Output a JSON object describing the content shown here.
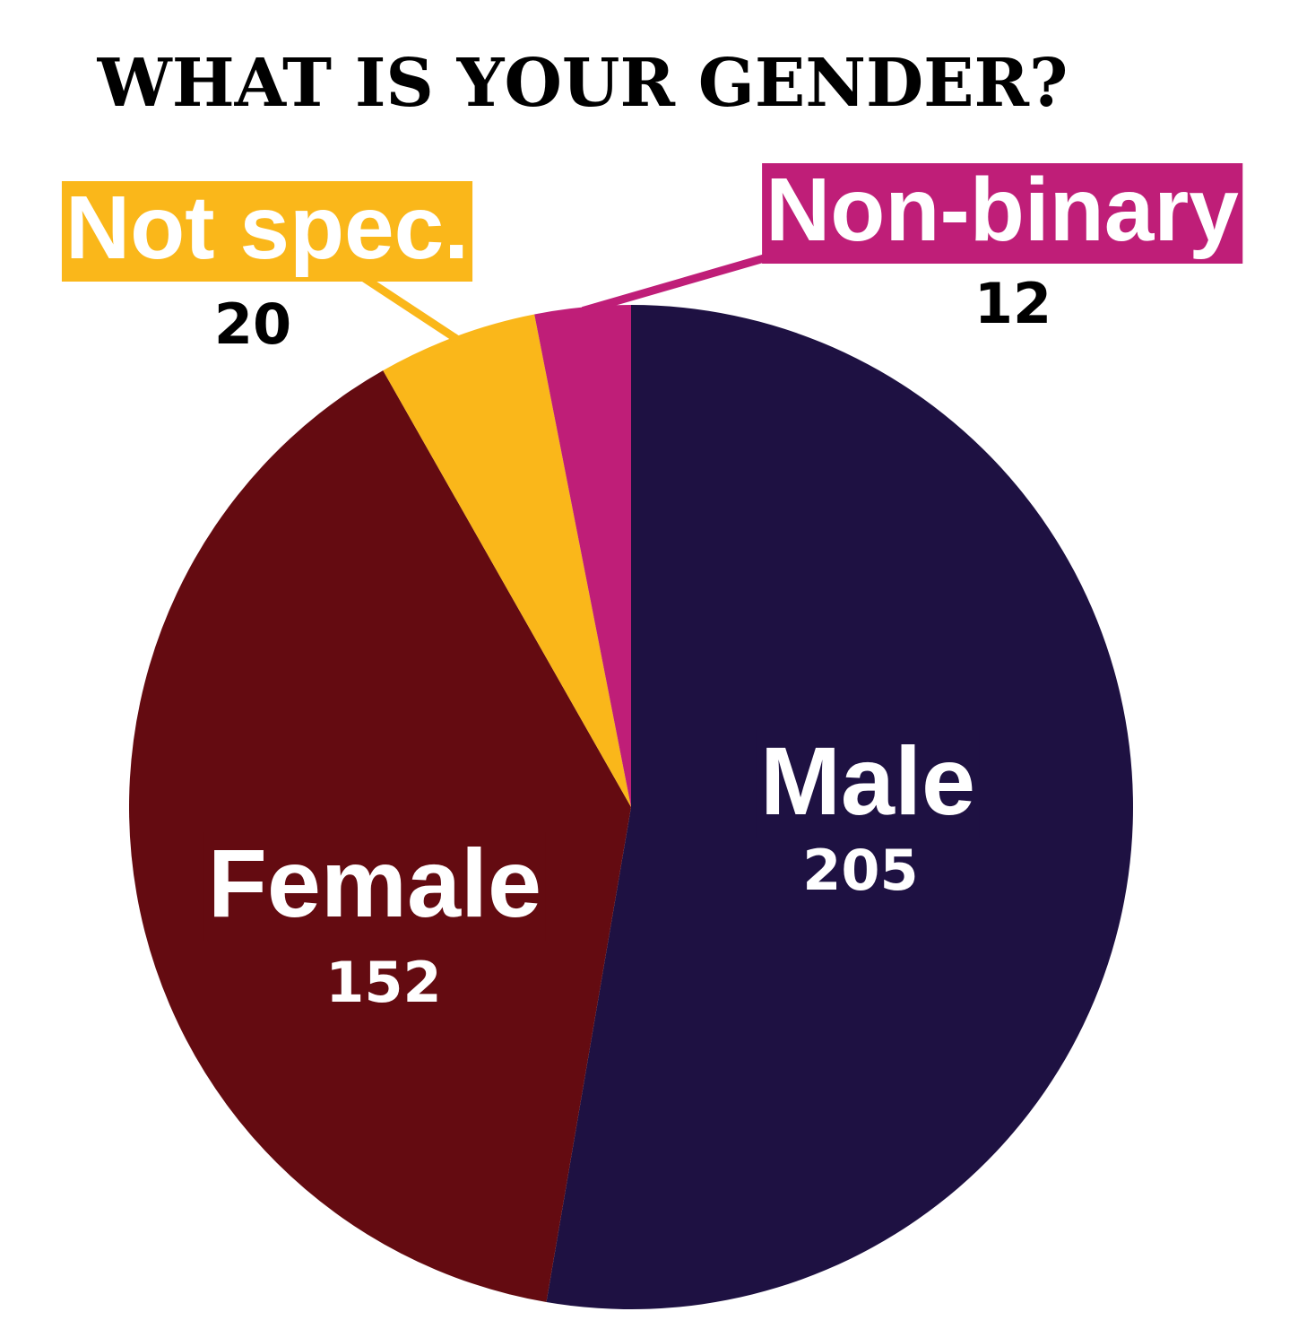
{
  "chart_data": {
    "type": "pie",
    "title": "WHAT IS YOUR GENDER?",
    "slices": [
      {
        "label": "Male",
        "value": 205,
        "color": "#1e1142"
      },
      {
        "label": "Female",
        "value": 152,
        "color": "#640b11"
      },
      {
        "label": "Not spec.",
        "value": 20,
        "color": "#fab71a"
      },
      {
        "label": "Non-binary",
        "value": 12,
        "color": "#bf1e78"
      }
    ],
    "value_labels": [
      "205",
      "152",
      "20",
      "12"
    ]
  }
}
